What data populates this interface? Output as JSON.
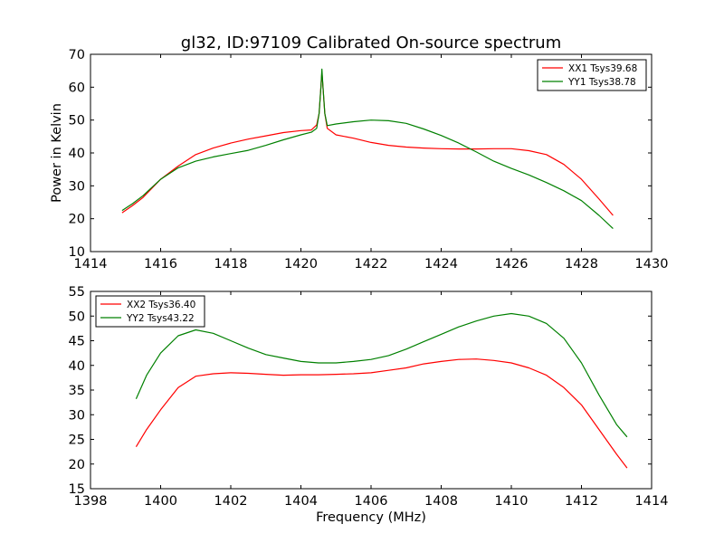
{
  "title": "gl32, ID:97109 Calibrated On-source spectrum",
  "chart_data": [
    {
      "type": "line",
      "ylabel": "Power in Kelvin",
      "xlabel": "",
      "xlim": [
        1414,
        1430
      ],
      "ylim": [
        10,
        70
      ],
      "xticks": [
        1414,
        1416,
        1418,
        1420,
        1422,
        1424,
        1426,
        1428,
        1430
      ],
      "yticks": [
        10,
        20,
        30,
        40,
        50,
        60,
        70
      ],
      "legend_position": "top-right",
      "grid": false,
      "series": [
        {
          "name": "XX1 Tsys39.68",
          "color": "#ff0000",
          "points": [
            [
              1414.9,
              21.8
            ],
            [
              1415.2,
              24.0
            ],
            [
              1415.5,
              26.5
            ],
            [
              1416.0,
              32.0
            ],
            [
              1416.5,
              36.0
            ],
            [
              1417.0,
              39.5
            ],
            [
              1417.5,
              41.5
            ],
            [
              1418.0,
              43.0
            ],
            [
              1418.5,
              44.2
            ],
            [
              1419.0,
              45.2
            ],
            [
              1419.5,
              46.2
            ],
            [
              1420.0,
              46.8
            ],
            [
              1420.3,
              47.0
            ],
            [
              1420.45,
              48.5
            ],
            [
              1420.52,
              52.0
            ],
            [
              1420.57,
              60.0
            ],
            [
              1420.6,
              64.5
            ],
            [
              1420.63,
              60.0
            ],
            [
              1420.68,
              52.0
            ],
            [
              1420.75,
              47.5
            ],
            [
              1421.0,
              45.5
            ],
            [
              1421.5,
              44.5
            ],
            [
              1422.0,
              43.2
            ],
            [
              1422.5,
              42.3
            ],
            [
              1423.0,
              41.8
            ],
            [
              1423.5,
              41.5
            ],
            [
              1424.0,
              41.3
            ],
            [
              1424.5,
              41.2
            ],
            [
              1425.0,
              41.2
            ],
            [
              1425.5,
              41.3
            ],
            [
              1426.0,
              41.3
            ],
            [
              1426.5,
              40.7
            ],
            [
              1427.0,
              39.5
            ],
            [
              1427.5,
              36.5
            ],
            [
              1428.0,
              32.0
            ],
            [
              1428.5,
              26.0
            ],
            [
              1428.9,
              21.0
            ]
          ]
        },
        {
          "name": "YY1 Tsys38.78",
          "color": "#008000",
          "points": [
            [
              1414.9,
              22.5
            ],
            [
              1415.2,
              24.6
            ],
            [
              1415.5,
              27.0
            ],
            [
              1416.0,
              32.0
            ],
            [
              1416.5,
              35.5
            ],
            [
              1417.0,
              37.5
            ],
            [
              1417.5,
              38.8
            ],
            [
              1418.0,
              39.8
            ],
            [
              1418.5,
              40.8
            ],
            [
              1419.0,
              42.3
            ],
            [
              1419.5,
              44.0
            ],
            [
              1420.0,
              45.5
            ],
            [
              1420.3,
              46.3
            ],
            [
              1420.45,
              47.5
            ],
            [
              1420.52,
              52.0
            ],
            [
              1420.57,
              60.0
            ],
            [
              1420.6,
              65.5
            ],
            [
              1420.63,
              60.0
            ],
            [
              1420.68,
              52.0
            ],
            [
              1420.75,
              48.3
            ],
            [
              1421.0,
              48.8
            ],
            [
              1421.5,
              49.5
            ],
            [
              1422.0,
              50.0
            ],
            [
              1422.5,
              49.8
            ],
            [
              1423.0,
              49.0
            ],
            [
              1423.5,
              47.3
            ],
            [
              1424.0,
              45.3
            ],
            [
              1424.5,
              43.0
            ],
            [
              1425.0,
              40.3
            ],
            [
              1425.5,
              37.5
            ],
            [
              1426.0,
              35.3
            ],
            [
              1426.5,
              33.3
            ],
            [
              1427.0,
              31.0
            ],
            [
              1427.5,
              28.5
            ],
            [
              1428.0,
              25.5
            ],
            [
              1428.5,
              21.0
            ],
            [
              1428.9,
              17.0
            ]
          ]
        }
      ]
    },
    {
      "type": "line",
      "ylabel": "",
      "xlabel": "Frequency (MHz)",
      "xlim": [
        1398,
        1414
      ],
      "ylim": [
        15,
        55
      ],
      "xticks": [
        1398,
        1400,
        1402,
        1404,
        1406,
        1408,
        1410,
        1412,
        1414
      ],
      "yticks": [
        15,
        20,
        25,
        30,
        35,
        40,
        45,
        50,
        55
      ],
      "legend_position": "top-left",
      "grid": false,
      "series": [
        {
          "name": "XX2 Tsys36.40",
          "color": "#ff0000",
          "points": [
            [
              1399.3,
              23.5
            ],
            [
              1399.6,
              27.0
            ],
            [
              1400.0,
              31.0
            ],
            [
              1400.5,
              35.5
            ],
            [
              1401.0,
              37.8
            ],
            [
              1401.5,
              38.3
            ],
            [
              1402.0,
              38.5
            ],
            [
              1402.5,
              38.4
            ],
            [
              1403.0,
              38.2
            ],
            [
              1403.5,
              38.0
            ],
            [
              1404.0,
              38.1
            ],
            [
              1404.5,
              38.1
            ],
            [
              1405.0,
              38.2
            ],
            [
              1405.5,
              38.3
            ],
            [
              1406.0,
              38.5
            ],
            [
              1406.5,
              39.0
            ],
            [
              1407.0,
              39.5
            ],
            [
              1407.5,
              40.3
            ],
            [
              1408.0,
              40.8
            ],
            [
              1408.5,
              41.2
            ],
            [
              1409.0,
              41.3
            ],
            [
              1409.5,
              41.0
            ],
            [
              1410.0,
              40.5
            ],
            [
              1410.5,
              39.5
            ],
            [
              1411.0,
              38.0
            ],
            [
              1411.5,
              35.5
            ],
            [
              1412.0,
              32.0
            ],
            [
              1412.5,
              27.0
            ],
            [
              1413.0,
              22.0
            ],
            [
              1413.3,
              19.2
            ]
          ]
        },
        {
          "name": "YY2 Tsys43.22",
          "color": "#008000",
          "points": [
            [
              1399.3,
              33.2
            ],
            [
              1399.6,
              38.0
            ],
            [
              1400.0,
              42.5
            ],
            [
              1400.5,
              46.0
            ],
            [
              1401.0,
              47.2
            ],
            [
              1401.5,
              46.5
            ],
            [
              1402.0,
              45.0
            ],
            [
              1402.5,
              43.5
            ],
            [
              1403.0,
              42.2
            ],
            [
              1403.5,
              41.5
            ],
            [
              1404.0,
              40.8
            ],
            [
              1404.5,
              40.5
            ],
            [
              1405.0,
              40.5
            ],
            [
              1405.5,
              40.8
            ],
            [
              1406.0,
              41.2
            ],
            [
              1406.5,
              42.0
            ],
            [
              1407.0,
              43.3
            ],
            [
              1407.5,
              44.8
            ],
            [
              1408.0,
              46.3
            ],
            [
              1408.5,
              47.8
            ],
            [
              1409.0,
              49.0
            ],
            [
              1409.5,
              50.0
            ],
            [
              1410.0,
              50.5
            ],
            [
              1410.5,
              50.0
            ],
            [
              1411.0,
              48.5
            ],
            [
              1411.5,
              45.5
            ],
            [
              1412.0,
              40.5
            ],
            [
              1412.5,
              34.0
            ],
            [
              1413.0,
              28.0
            ],
            [
              1413.3,
              25.5
            ]
          ]
        }
      ]
    }
  ]
}
